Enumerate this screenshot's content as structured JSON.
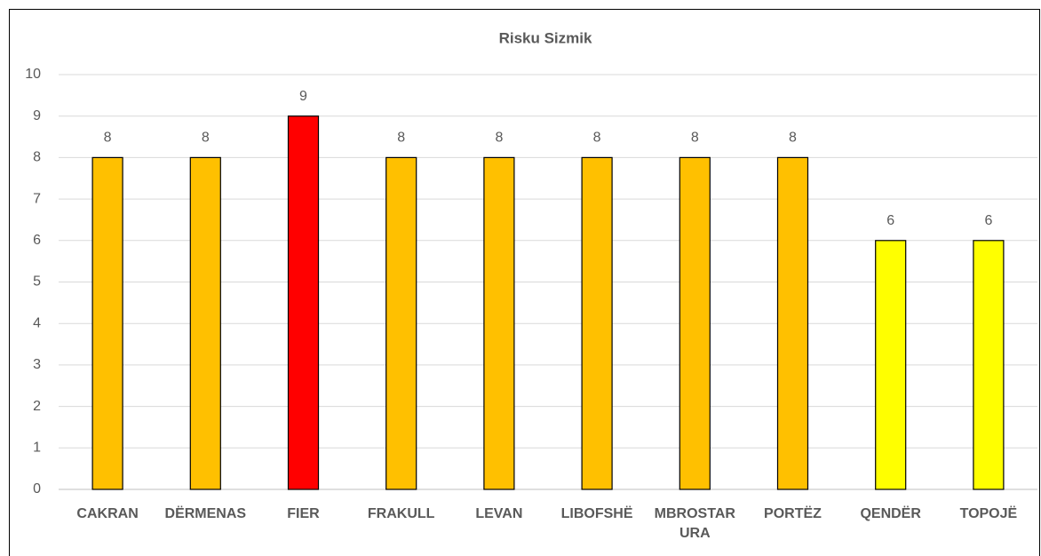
{
  "chart_data": {
    "type": "bar",
    "title": "Risku Sizmik",
    "categories": [
      "CAKRAN",
      "DËRMENAS",
      "FIER",
      "FRAKULL",
      "LEVAN",
      "LIBOFSHË",
      "MBROSTAR URA",
      "PORTËZ",
      "QENDËR",
      "TOPOJË"
    ],
    "values": [
      8,
      8,
      9,
      8,
      8,
      8,
      8,
      8,
      6,
      6
    ],
    "colors": [
      "#FFC000",
      "#FFC000",
      "#FF0000",
      "#FFC000",
      "#FFC000",
      "#FFC000",
      "#FFC000",
      "#FFC000",
      "#FFFF00",
      "#FFFF00"
    ],
    "ylim": [
      0,
      10
    ],
    "yticks": [
      0,
      1,
      2,
      3,
      4,
      5,
      6,
      7,
      8,
      9,
      10
    ],
    "grid": true
  }
}
